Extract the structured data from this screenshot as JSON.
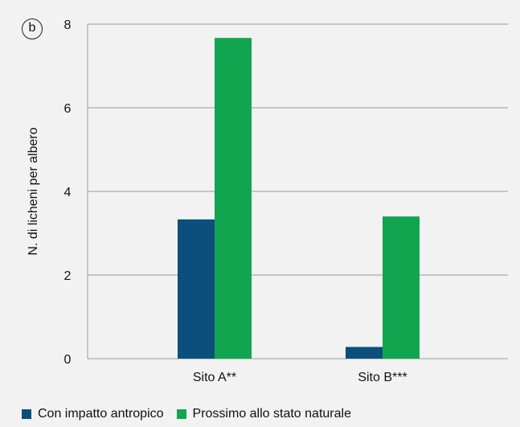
{
  "panel_label": "b",
  "colors": {
    "background": "#f2f2f2",
    "grid": "#9a9a9a",
    "axis_text": "#111111",
    "series_0": "#0b4f7c",
    "series_1": "#12a550"
  },
  "chart_data": {
    "type": "bar",
    "title": "",
    "xlabel": "",
    "ylabel": "N. di licheni per albero",
    "categories": [
      "Sito A**",
      "Sito B***"
    ],
    "ylim": [
      0,
      8
    ],
    "yticks": [
      0,
      2,
      4,
      6,
      8
    ],
    "grid": true,
    "legend_position": "bottom-left",
    "series": [
      {
        "name": "Con impatto antropico",
        "values": [
          3.33,
          0.28
        ]
      },
      {
        "name": "Prossimo allo stato naturale",
        "values": [
          7.67,
          3.4
        ]
      }
    ]
  }
}
